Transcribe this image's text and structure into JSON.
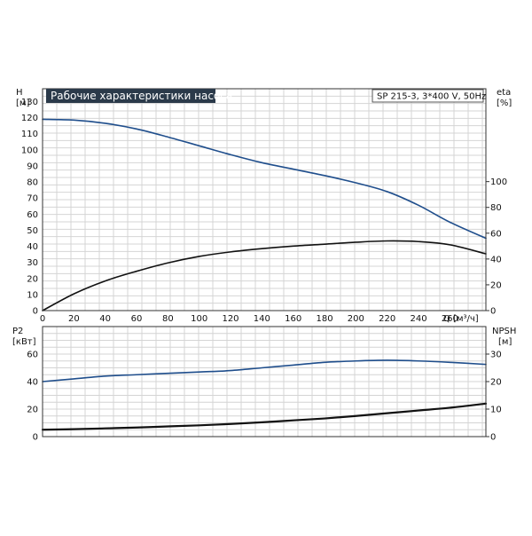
{
  "chart_data": [
    {
      "type": "line",
      "title": "Рабочие характеристики насоса",
      "subtitle": "SP 215-3, 3*400 V, 50Hz",
      "xlabel": "Q [м³/ч]",
      "xlim": [
        0,
        283
      ],
      "xticks": [
        0,
        20,
        40,
        60,
        80,
        100,
        120,
        140,
        160,
        180,
        200,
        220,
        240,
        260
      ],
      "ylabel_left": [
        "H",
        "[м]"
      ],
      "ylim_left": [
        0,
        138
      ],
      "yticks_left": [
        0,
        10,
        20,
        30,
        40,
        50,
        60,
        70,
        80,
        90,
        100,
        110,
        120,
        130
      ],
      "ylabel_right": [
        "eta",
        "[%]"
      ],
      "ylim_right": [
        0,
        172
      ],
      "yticks_right": [
        0,
        20,
        40,
        60,
        80,
        100
      ],
      "grid": true,
      "series": [
        {
          "axis": "left",
          "color": "#1f4e8c",
          "x": [
            0,
            20,
            40,
            60,
            80,
            100,
            120,
            140,
            160,
            180,
            200,
            220,
            240,
            260,
            283
          ],
          "y": [
            119,
            118.5,
            116.5,
            113,
            108,
            102.5,
            97,
            92,
            88,
            84,
            79.5,
            74,
            65.5,
            55,
            45
          ]
        },
        {
          "axis": "right",
          "color": "#111111",
          "x": [
            0,
            20,
            40,
            60,
            80,
            100,
            120,
            140,
            160,
            180,
            200,
            220,
            240,
            260,
            283
          ],
          "y": [
            0,
            13,
            23,
            30.5,
            37,
            42,
            45.5,
            48,
            50,
            51.5,
            53,
            54,
            53.5,
            51,
            44
          ]
        }
      ]
    },
    {
      "type": "line",
      "ylabel_left": [
        "P2",
        "[кВт]"
      ],
      "ylim_left": [
        0,
        80
      ],
      "yticks_left": [
        0,
        20,
        40,
        60
      ],
      "ylabel_right": [
        "NPSH",
        "[м]"
      ],
      "ylim_right": [
        0,
        40
      ],
      "yticks_right": [
        0,
        10,
        20,
        30
      ],
      "xlim": [
        0,
        283
      ],
      "grid": true,
      "series": [
        {
          "axis": "left",
          "color": "#1f4e8c",
          "x": [
            0,
            20,
            40,
            60,
            80,
            100,
            120,
            140,
            160,
            180,
            200,
            220,
            240,
            260,
            283
          ],
          "y": [
            40,
            42,
            44,
            45,
            46,
            47,
            48,
            50,
            52,
            54,
            55,
            55.5,
            55,
            54,
            52.5
          ]
        },
        {
          "axis": "right",
          "color": "#111111",
          "x": [
            0,
            20,
            40,
            60,
            80,
            100,
            120,
            140,
            160,
            180,
            200,
            220,
            240,
            260,
            283
          ],
          "y": [
            2.5,
            2.7,
            3,
            3.3,
            3.7,
            4.1,
            4.6,
            5.2,
            5.9,
            6.6,
            7.5,
            8.5,
            9.5,
            10.5,
            12
          ]
        }
      ]
    }
  ]
}
